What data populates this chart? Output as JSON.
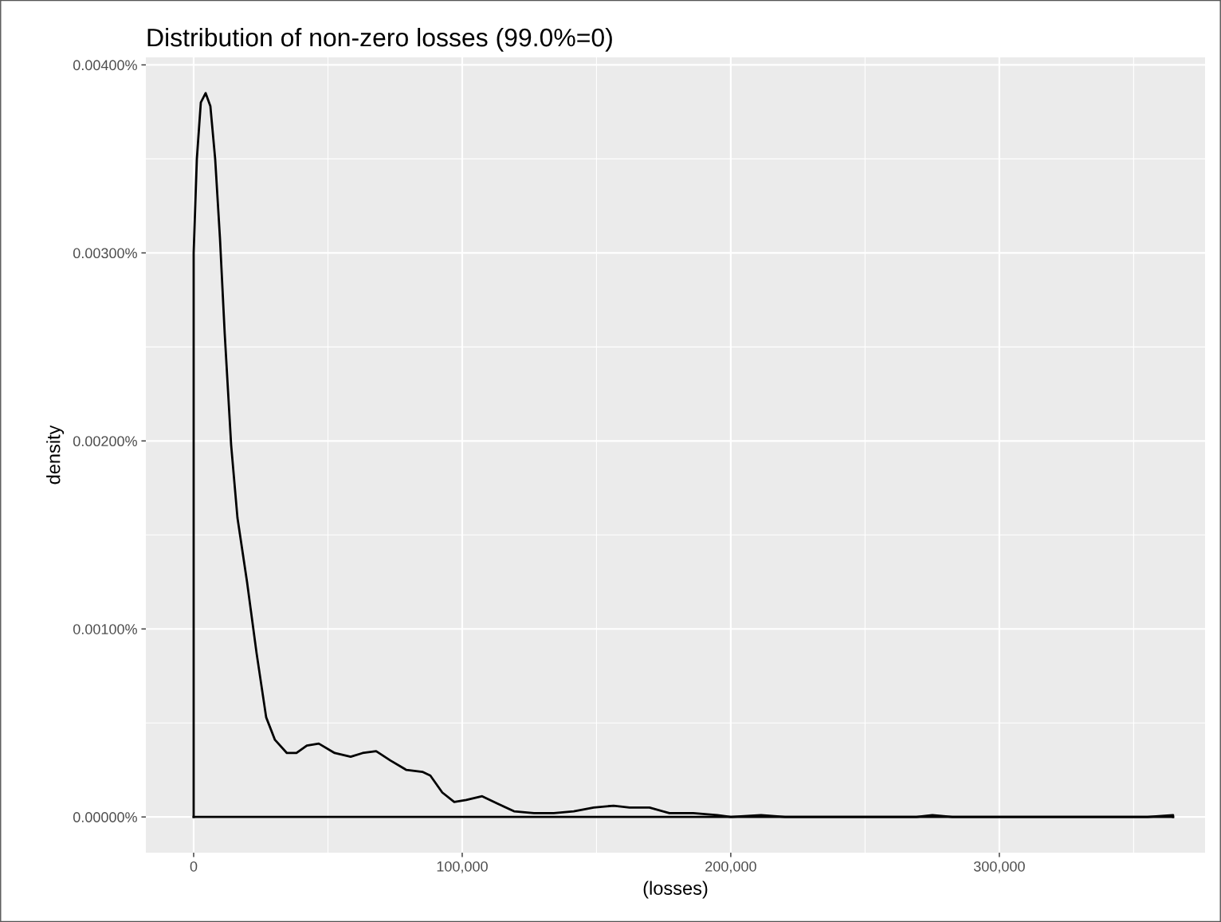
{
  "chart_data": {
    "type": "line",
    "title": "Distribution of non-zero losses (99.0%=0)",
    "xlabel": "(losses)",
    "ylabel": "density",
    "x": [
      0,
      0,
      1190,
      2670,
      4450,
      6230,
      8010,
      9790,
      11570,
      13950,
      16320,
      19880,
      23440,
      27000,
      30270,
      34720,
      38280,
      42140,
      46590,
      52520,
      58460,
      62910,
      67950,
      73290,
      79230,
      85160,
      88130,
      92580,
      97030,
      101480,
      107420,
      113350,
      119290,
      126710,
      134120,
      141540,
      148960,
      156380,
      162310,
      169730,
      177150,
      186050,
      194960,
      200000,
      211280,
      220180,
      269140,
      275070,
      282490,
      355190,
      364690,
      364690
    ],
    "series": [
      {
        "color": "#000000",
        "values": [
          0,
          0.003,
          0.0035,
          0.0038,
          0.00385,
          0.00378,
          0.0035,
          0.00308,
          0.00257,
          0.00198,
          0.00159,
          0.00125,
          0.00087,
          0.00053,
          0.00041,
          0.00034,
          0.00034,
          0.00038,
          0.00039,
          0.00034,
          0.00032,
          0.00034,
          0.00035,
          0.0003,
          0.00025,
          0.00024,
          0.00022,
          0.00013,
          8e-05,
          9e-05,
          0.00011,
          7e-05,
          3e-05,
          2e-05,
          2e-05,
          3e-05,
          5e-05,
          6e-05,
          5e-05,
          5e-05,
          2e-05,
          2e-05,
          1e-05,
          0,
          1e-05,
          0,
          0,
          1e-05,
          0,
          0,
          1e-05,
          0
        ]
      },
      {
        "color": "#000000",
        "x": [
          0,
          364690
        ],
        "values": [
          0,
          0
        ]
      }
    ],
    "xlim": [
      -17800,
      376600
    ],
    "ylim": [
      -0.00019,
      0.00404
    ],
    "xticks": [
      {
        "value": 0,
        "label": "0"
      },
      {
        "value": 100000,
        "label": "100,000"
      },
      {
        "value": 200000,
        "label": "200,000"
      },
      {
        "value": 300000,
        "label": "300,000"
      }
    ],
    "yticks": [
      {
        "value": 0,
        "label": "0.00000%"
      },
      {
        "value": 0.001,
        "label": "0.00100%"
      },
      {
        "value": 0.002,
        "label": "0.00200%"
      },
      {
        "value": 0.003,
        "label": "0.00300%"
      },
      {
        "value": 0.004,
        "label": "0.00400%"
      }
    ],
    "grid": true,
    "marker": "none",
    "line_style": "solid",
    "legend": false
  }
}
